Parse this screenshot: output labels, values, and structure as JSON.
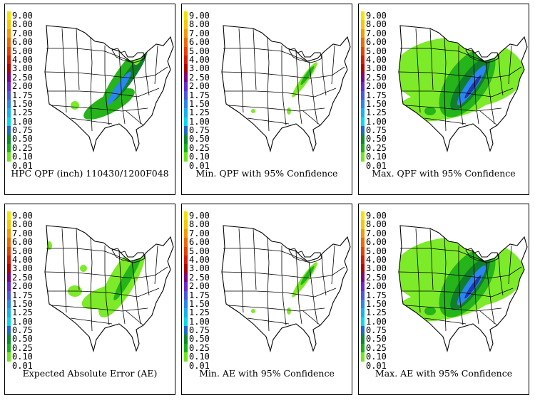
{
  "legend": {
    "levels": [
      "9.00",
      "8.00",
      "7.00",
      "6.00",
      "5.00",
      "4.00",
      "3.00",
      "2.50",
      "2.00",
      "1.75",
      "1.50",
      "1.25",
      "1.00",
      "0.75",
      "0.50",
      "0.25",
      "0.10",
      "0.01"
    ],
    "colors": [
      "#f2e400",
      "#f7c800",
      "#f59a00",
      "#ee6a00",
      "#e64000",
      "#d61a00",
      "#b00000",
      "#800080",
      "#6a2ad0",
      "#4a5ae0",
      "#2a86f0",
      "#12b4f0",
      "#0ad8e8",
      "#1e68c8",
      "#0a8a2a",
      "#16b01a",
      "#6ee81e",
      "#ffffff"
    ]
  },
  "map_colors": {
    "light": "#7dea2a",
    "mid": "#25b41a",
    "dark": "#0f7f2a",
    "blue": "#2a86f0",
    "navy": "#1e3aa8",
    "red": "#d61a00",
    "border": "#000000"
  },
  "panels": [
    {
      "caption": "HPC QPF (inch) 110430/1200F048",
      "intensity": "base"
    },
    {
      "caption": "Min. QPF with 95% Confidence",
      "intensity": "min"
    },
    {
      "caption": "Max. QPF with 95% Confidence",
      "intensity": "max"
    },
    {
      "caption": "Expected Absolute Error (AE)",
      "intensity": "ae"
    },
    {
      "caption": "Min. AE with 95% Confidence",
      "intensity": "min"
    },
    {
      "caption": "Max. AE with 95% Confidence",
      "intensity": "max"
    }
  ]
}
